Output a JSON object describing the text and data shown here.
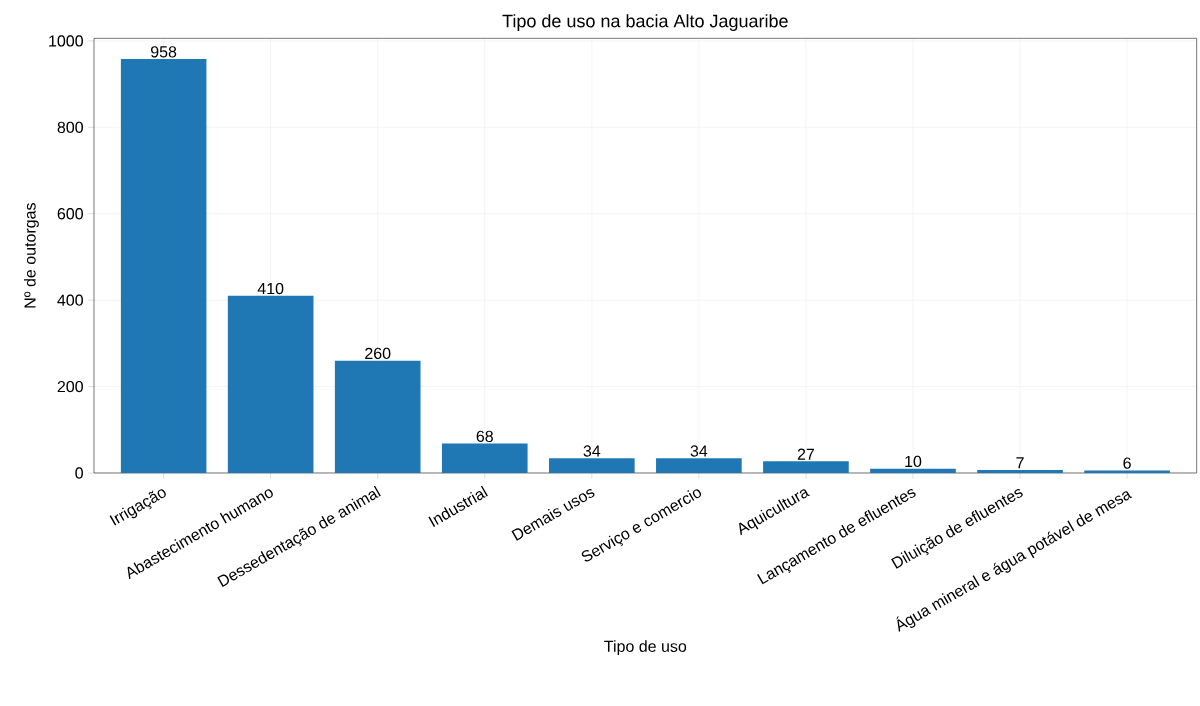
{
  "chart_data": {
    "type": "bar",
    "title": "Tipo de uso na bacia Alto Jaguaribe",
    "xlabel": "Tipo de uso",
    "ylabel": "Nº de outorgas",
    "categories": [
      "Irrigação",
      "Abastecimento humano",
      "Dessedentação de animal",
      "Industrial",
      "Demais usos",
      "Serviço e comercio",
      "Aquicultura",
      "Lançamento de efluentes",
      "Diluição de efluentes",
      "Água mineral e água potável de mesa"
    ],
    "values": [
      958,
      410,
      260,
      68,
      34,
      34,
      27,
      10,
      7,
      6
    ],
    "color": "#1f77b4",
    "ylim": [
      0,
      1006
    ],
    "yticks": [
      0,
      200,
      400,
      600,
      800,
      1000
    ],
    "grid": true,
    "data_labels": true
  }
}
